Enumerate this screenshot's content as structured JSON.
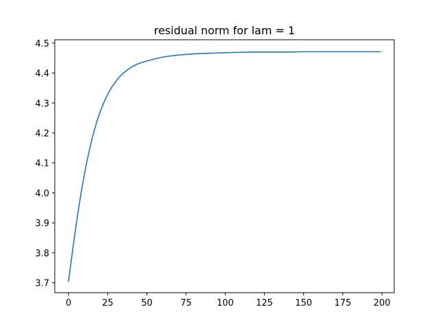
{
  "chart_data": {
    "type": "line",
    "title": "residual norm for lam = 1",
    "xlabel": "",
    "ylabel": "",
    "xlim": [
      -8.8,
      207.8
    ],
    "ylim": [
      3.667,
      4.511
    ],
    "x_ticks": [
      0,
      25,
      50,
      75,
      100,
      125,
      150,
      175,
      200
    ],
    "y_ticks": [
      3.7,
      3.8,
      3.9,
      4.0,
      4.1,
      4.2,
      4.3,
      4.4,
      4.5
    ],
    "x_tick_labels": [
      "0",
      "25",
      "50",
      "75",
      "100",
      "125",
      "150",
      "175",
      "200"
    ],
    "y_tick_labels": [
      "3.7",
      "3.8",
      "3.9",
      "4.0",
      "4.1",
      "4.2",
      "4.3",
      "4.4",
      "4.5"
    ],
    "grid": false,
    "legend": "none",
    "series": [
      {
        "color": "#1f77b4",
        "x": [
          0,
          2,
          4,
          6,
          8,
          10,
          12,
          14,
          16,
          18,
          20,
          22,
          24,
          26,
          28,
          30,
          32,
          34,
          36,
          38,
          40,
          42,
          44,
          46,
          48,
          50,
          55,
          60,
          65,
          70,
          75,
          80,
          85,
          90,
          95,
          100,
          110,
          120,
          130,
          140,
          150,
          160,
          170,
          180,
          190,
          199
        ],
        "y": [
          3.705,
          3.785,
          3.862,
          3.934,
          4.0,
          4.059,
          4.112,
          4.159,
          4.201,
          4.237,
          4.268,
          4.295,
          4.319,
          4.339,
          4.356,
          4.371,
          4.384,
          4.395,
          4.404,
          4.412,
          4.419,
          4.425,
          4.43,
          4.434,
          4.437,
          4.44,
          4.447,
          4.453,
          4.457,
          4.46,
          4.462,
          4.464,
          4.465,
          4.466,
          4.467,
          4.468,
          4.469,
          4.47,
          4.47,
          4.47,
          4.471,
          4.471,
          4.471,
          4.471,
          4.471,
          4.471
        ]
      }
    ]
  }
}
